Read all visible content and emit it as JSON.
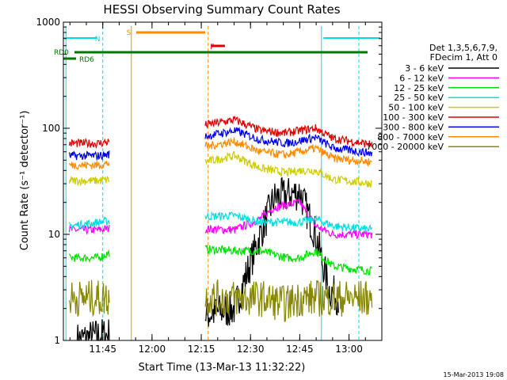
{
  "chart_data": {
    "type": "line",
    "title": "HESSI Observing Summary Count Rates",
    "xlabel": "Start Time (13-Mar-13 11:32:22)",
    "ylabel": "Count Rate (s⁻¹ detector⁻¹)",
    "y_scale": "log",
    "ylim": [
      1,
      1000
    ],
    "xlim": [
      "11:33",
      "13:10"
    ],
    "x_ticks": [
      "11:45",
      "12:00",
      "12:15",
      "12:30",
      "12:45",
      "13:00"
    ],
    "y_ticks": [
      "1",
      "10",
      "100",
      "1000"
    ],
    "legend": {
      "placement": "right",
      "header": [
        "Det 1,3,5,6,7,9,",
        "FDecim 1, Att 0"
      ]
    },
    "flags": [
      {
        "label": "N",
        "color": "#00dddd"
      },
      {
        "label": "S",
        "color": "#ff8c00"
      },
      {
        "label": "F",
        "color": "#e00000"
      },
      {
        "label": "RD0",
        "color": "#007700"
      },
      {
        "label": "RD6",
        "color": "#007700"
      }
    ],
    "series": [
      {
        "name": "3 - 6 keV",
        "color": "#000000",
        "values": [
          [
            11.62,
            1
          ],
          [
            11.73,
            1.1
          ],
          [
            11.87,
            1.2
          ],
          [
            12.42,
            2
          ],
          [
            12.55,
            10
          ],
          [
            12.62,
            22
          ],
          [
            12.75,
            25
          ],
          [
            12.83,
            10
          ],
          [
            12.9,
            3
          ],
          [
            12.95,
            2.5
          ]
        ]
      },
      {
        "name": "6 - 12 keV",
        "color": "#ff00ff",
        "values": [
          [
            11.58,
            11
          ],
          [
            11.73,
            11
          ],
          [
            11.87,
            12
          ],
          [
            12.42,
            11
          ],
          [
            12.55,
            14
          ],
          [
            12.62,
            18
          ],
          [
            12.75,
            20
          ],
          [
            12.83,
            12
          ],
          [
            12.92,
            10
          ],
          [
            13.12,
            10
          ]
        ]
      },
      {
        "name": "12 - 25 keV",
        "color": "#00e000",
        "values": [
          [
            11.58,
            6
          ],
          [
            11.73,
            6
          ],
          [
            11.87,
            8
          ],
          [
            12.42,
            7
          ],
          [
            12.55,
            7
          ],
          [
            12.68,
            6
          ],
          [
            12.75,
            6
          ],
          [
            12.83,
            7
          ],
          [
            12.92,
            5
          ],
          [
            13.12,
            4.5
          ]
        ]
      },
      {
        "name": "25 - 50 keV",
        "color": "#00e0e0",
        "values": [
          [
            11.58,
            12
          ],
          [
            11.73,
            13
          ],
          [
            11.87,
            14
          ],
          [
            12.42,
            15
          ],
          [
            12.55,
            13
          ],
          [
            12.68,
            13
          ],
          [
            12.75,
            13
          ],
          [
            12.83,
            14
          ],
          [
            12.92,
            12
          ],
          [
            13.12,
            11
          ]
        ]
      },
      {
        "name": "50 - 100 keV",
        "color": "#cccc00",
        "values": [
          [
            11.58,
            32
          ],
          [
            11.73,
            32
          ],
          [
            11.87,
            34
          ],
          [
            12.42,
            55
          ],
          [
            12.55,
            42
          ],
          [
            12.68,
            38
          ],
          [
            12.75,
            40
          ],
          [
            12.83,
            40
          ],
          [
            12.92,
            33
          ],
          [
            13.12,
            30
          ]
        ]
      },
      {
        "name": "100 - 300 keV",
        "color": "#dd0000",
        "values": [
          [
            11.58,
            72
          ],
          [
            11.73,
            72
          ],
          [
            11.87,
            80
          ],
          [
            12.42,
            120
          ],
          [
            12.55,
            95
          ],
          [
            12.68,
            90
          ],
          [
            12.75,
            95
          ],
          [
            12.83,
            100
          ],
          [
            12.92,
            80
          ],
          [
            13.12,
            70
          ]
        ]
      },
      {
        "name": "300 - 800 keV",
        "color": "#0000ee",
        "values": [
          [
            11.58,
            55
          ],
          [
            11.73,
            55
          ],
          [
            11.87,
            60
          ],
          [
            12.42,
            95
          ],
          [
            12.55,
            78
          ],
          [
            12.68,
            72
          ],
          [
            12.75,
            76
          ],
          [
            12.83,
            82
          ],
          [
            12.92,
            65
          ],
          [
            13.12,
            58
          ]
        ]
      },
      {
        "name": "800 - 7000 keV",
        "color": "#ff8c00",
        "values": [
          [
            11.58,
            45
          ],
          [
            11.73,
            45
          ],
          [
            11.87,
            50
          ],
          [
            12.42,
            75
          ],
          [
            12.55,
            60
          ],
          [
            12.68,
            56
          ],
          [
            12.75,
            60
          ],
          [
            12.83,
            65
          ],
          [
            12.92,
            52
          ],
          [
            13.12,
            48
          ]
        ]
      },
      {
        "name": "7000 - 20000 keV",
        "color": "#888800",
        "values": [
          [
            11.58,
            2.5
          ],
          [
            11.73,
            2.5
          ],
          [
            11.87,
            2.5
          ],
          [
            12.42,
            2.5
          ],
          [
            12.55,
            2.5
          ],
          [
            12.68,
            2.2
          ],
          [
            12.75,
            2.5
          ],
          [
            12.83,
            2.5
          ],
          [
            12.92,
            2.5
          ],
          [
            13.12,
            2.5
          ]
        ]
      }
    ]
  },
  "timestamp": "15-Mar-2013 19:08"
}
